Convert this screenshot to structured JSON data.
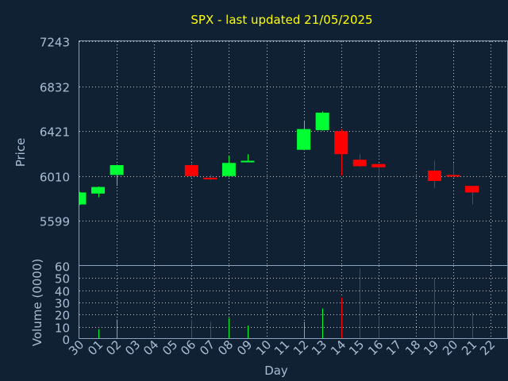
{
  "chart_data": {
    "type": "candlestick",
    "title": "SPX - last updated 21/05/2025",
    "xlabel": "Day",
    "ylabel": "Price",
    "volume_label": "Volume (0000)",
    "price_ticks": [
      7243,
      6832,
      6421,
      6010,
      5599
    ],
    "price_range": [
      5188,
      7243
    ],
    "volume_ticks": [
      0,
      10,
      20,
      30,
      40,
      50,
      60
    ],
    "volume_range": [
      0,
      60
    ],
    "x_ticks": [
      "30",
      "01",
      "02",
      "03",
      "04",
      "05",
      "06",
      "07",
      "08",
      "09",
      "10",
      "11",
      "12",
      "13",
      "14",
      "15",
      "16",
      "17",
      "18",
      "19",
      "20",
      "21",
      "22"
    ],
    "grid": true,
    "colors": {
      "up": "#00ff33",
      "down": "#ff0000",
      "title": "#ffff00",
      "background": "#0f2133",
      "axis_text": "#a9bdd4"
    },
    "candles": [
      {
        "day": "30",
        "open": 5750,
        "close": 5860,
        "high": 5865,
        "low": 5745,
        "volume": 0
      },
      {
        "day": "01",
        "open": 5850,
        "close": 5910,
        "high": 5915,
        "low": 5815,
        "volume": 8
      },
      {
        "day": "02",
        "open": 6020,
        "close": 6110,
        "high": 6115,
        "low": 5920,
        "volume": 16
      },
      {
        "day": "06",
        "open": 6110,
        "close": 6010,
        "high": 6125,
        "low": 6005,
        "volume": 16
      },
      {
        "day": "07",
        "open": 5995,
        "close": 5980,
        "high": 6020,
        "low": 5970,
        "volume": 14
      },
      {
        "day": "08",
        "open": 6010,
        "close": 6130,
        "high": 6195,
        "low": 6005,
        "volume": 17
      },
      {
        "day": "09",
        "open": 6150,
        "close": 6150,
        "high": 6210,
        "low": 6140,
        "volume": 11
      },
      {
        "day": "12",
        "open": 6250,
        "close": 6440,
        "high": 6520,
        "low": 6245,
        "volume": 14
      },
      {
        "day": "13",
        "open": 6430,
        "close": 6590,
        "high": 6600,
        "low": 6425,
        "volume": 25
      },
      {
        "day": "14",
        "open": 6420,
        "close": 6210,
        "high": 6440,
        "low": 6015,
        "volume": 34
      },
      {
        "day": "15",
        "open": 6160,
        "close": 6100,
        "high": 6210,
        "low": 6095,
        "volume": 58
      },
      {
        "day": "16",
        "open": 6120,
        "close": 6090,
        "high": 6125,
        "low": 5950,
        "volume": 19
      },
      {
        "day": "19",
        "open": 6060,
        "close": 5965,
        "high": 6150,
        "low": 5900,
        "volume": 50
      },
      {
        "day": "20",
        "open": 6020,
        "close": 6005,
        "high": 6130,
        "low": 6000,
        "volume": 26
      },
      {
        "day": "21",
        "open": 5920,
        "close": 5860,
        "high": 5920,
        "low": 5750,
        "volume": 22
      }
    ]
  }
}
